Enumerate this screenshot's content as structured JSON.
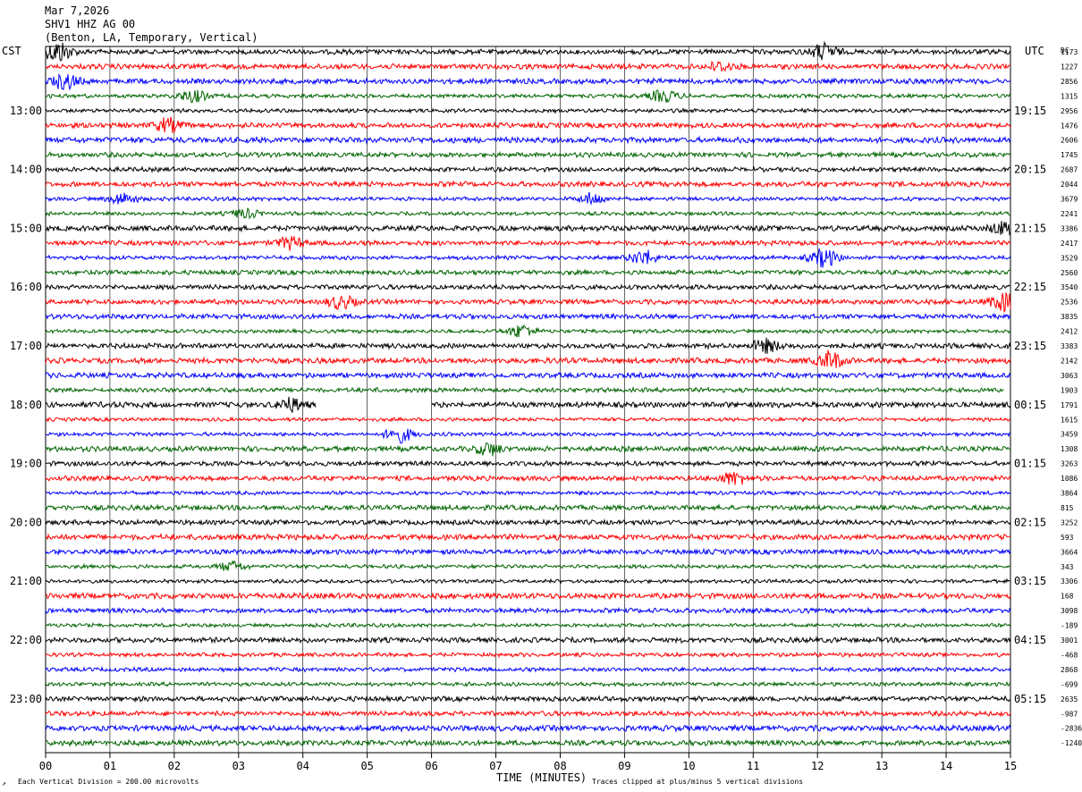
{
  "header": {
    "date": "Mar 7,2026",
    "station": "SHV1 HHZ AG 00",
    "location": "(Benton, LA, Temporary, Vertical)"
  },
  "left_zone": "CST",
  "right_zone": "UTC",
  "dc_label": "DC",
  "footer": {
    "xlabel": "TIME (MINUTES)",
    "scale_note": "Each Vertical Division =  200.00 microvolts",
    "clip_note": "Traces clipped at plus/minus 5 vertical divisions",
    "corner_mark": "↗"
  },
  "colors": [
    "#000000",
    "#ff0000",
    "#0000ff",
    "#006400"
  ],
  "chart_data": {
    "type": "line",
    "title": "SHV1 HHZ AG 00",
    "xlabel": "TIME (MINUTES)",
    "xlim": [
      0,
      15
    ],
    "x_tick_labels": [
      "00",
      "01",
      "02",
      "03",
      "04",
      "05",
      "06",
      "07",
      "08",
      "09",
      "10",
      "11",
      "12",
      "13",
      "14",
      "15"
    ],
    "rows_per_hour": 4,
    "row_count": 48,
    "cst_hour_labels": [
      "13:00",
      "14:00",
      "15:00",
      "16:00",
      "17:00",
      "18:00",
      "19:00",
      "20:00",
      "21:00",
      "22:00",
      "23:00"
    ],
    "utc_hour_labels": [
      "19:15",
      "20:15",
      "21:15",
      "22:15",
      "23:15",
      "00:15",
      "01:15",
      "02:15",
      "03:15",
      "04:15",
      "05:15"
    ],
    "dc_offsets": [
      "1173",
      "1227",
      "2856",
      "1315",
      "2956",
      "1476",
      "2606",
      "1745",
      "2687",
      "2044",
      "3679",
      "2241",
      "3386",
      "2417",
      "3529",
      "2560",
      "3540",
      "2536",
      "3835",
      "2412",
      "3383",
      "2142",
      "3063",
      "1903",
      "1791",
      "1615",
      "3459",
      "1308",
      "3263",
      "1086",
      "3864",
      "815",
      "3252",
      "593",
      "3664",
      "343",
      "3306",
      "168",
      "3098",
      "-189",
      "3001",
      "-468",
      "2868",
      "-699",
      "2635",
      "-987",
      "-2836",
      "-1240"
    ],
    "gaps": [
      {
        "row": 24,
        "start_min": 4.2,
        "end_min": 6.0
      },
      {
        "row": 23,
        "start_min": 14.9,
        "end_min": 15.0
      }
    ],
    "events": [
      {
        "row": 0,
        "minute": 0.2,
        "amplitude": 2.2
      },
      {
        "row": 0,
        "minute": 12.1,
        "amplitude": 1.6
      },
      {
        "row": 1,
        "minute": 10.5,
        "amplitude": 1.0
      },
      {
        "row": 2,
        "minute": 0.3,
        "amplitude": 1.5
      },
      {
        "row": 3,
        "minute": 2.3,
        "amplitude": 1.3
      },
      {
        "row": 3,
        "minute": 9.6,
        "amplitude": 1.3
      },
      {
        "row": 5,
        "minute": 1.9,
        "amplitude": 1.4
      },
      {
        "row": 10,
        "minute": 1.2,
        "amplitude": 1.3
      },
      {
        "row": 10,
        "minute": 8.5,
        "amplitude": 1.2
      },
      {
        "row": 11,
        "minute": 3.1,
        "amplitude": 1.0
      },
      {
        "row": 12,
        "minute": 14.9,
        "amplitude": 1.3
      },
      {
        "row": 13,
        "minute": 3.8,
        "amplitude": 1.2
      },
      {
        "row": 14,
        "minute": 9.3,
        "amplitude": 1.6
      },
      {
        "row": 14,
        "minute": 12.1,
        "amplitude": 2.0
      },
      {
        "row": 17,
        "minute": 4.6,
        "amplitude": 1.4
      },
      {
        "row": 17,
        "minute": 14.9,
        "amplitude": 1.8
      },
      {
        "row": 19,
        "minute": 7.4,
        "amplitude": 1.4
      },
      {
        "row": 20,
        "minute": 11.2,
        "amplitude": 1.4
      },
      {
        "row": 21,
        "minute": 12.2,
        "amplitude": 1.8
      },
      {
        "row": 24,
        "minute": 3.8,
        "amplitude": 1.3
      },
      {
        "row": 26,
        "minute": 5.5,
        "amplitude": 1.7
      },
      {
        "row": 27,
        "minute": 6.9,
        "amplitude": 1.3
      },
      {
        "row": 29,
        "minute": 10.7,
        "amplitude": 1.3
      },
      {
        "row": 35,
        "minute": 2.9,
        "amplitude": 1.0
      }
    ]
  }
}
